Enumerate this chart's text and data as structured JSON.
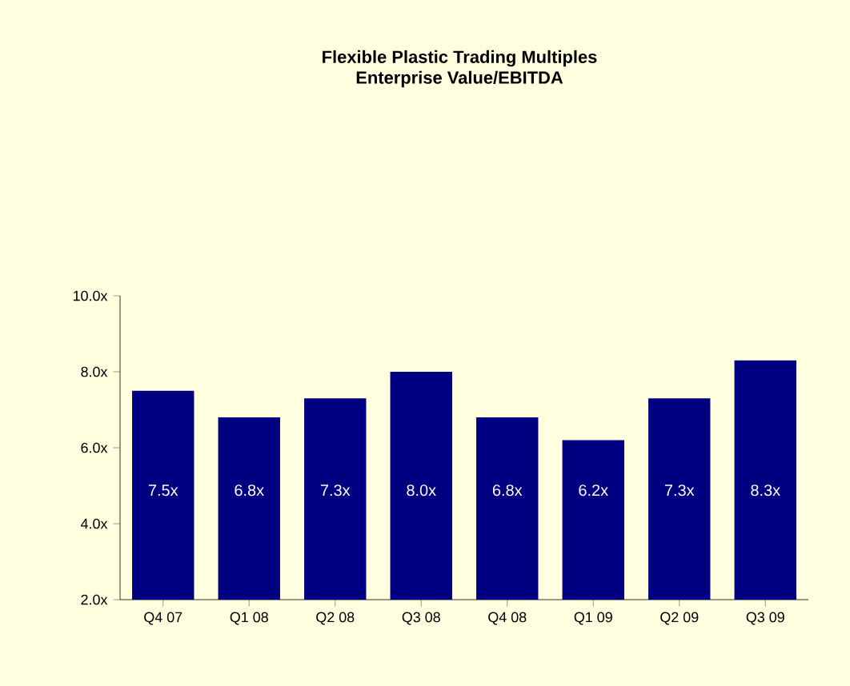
{
  "chart_data": {
    "type": "bar",
    "title": "Flexible Plastic Trading Multiples\nEnterprise Value/EBITDA",
    "categories": [
      "Q4 07",
      "Q1 08",
      "Q2 08",
      "Q3 08",
      "Q4 08",
      "Q1 09",
      "Q2 09",
      "Q3 09"
    ],
    "values": [
      7.5,
      6.8,
      7.3,
      8.0,
      6.8,
      6.2,
      7.3,
      8.3
    ],
    "value_labels": [
      "7.5x",
      "6.8x",
      "7.3x",
      "8.0x",
      "6.8x",
      "6.2x",
      "7.3x",
      "8.3x"
    ],
    "color": "#000080",
    "ylim": [
      2,
      10
    ],
    "yticks": [
      {
        "value": 2,
        "label": "2.0x"
      },
      {
        "value": 4,
        "label": "4.0x"
      },
      {
        "value": 6,
        "label": "6.0x"
      },
      {
        "value": 8,
        "label": "8.0x"
      },
      {
        "value": 10,
        "label": "10.0x"
      }
    ],
    "grid": false
  }
}
